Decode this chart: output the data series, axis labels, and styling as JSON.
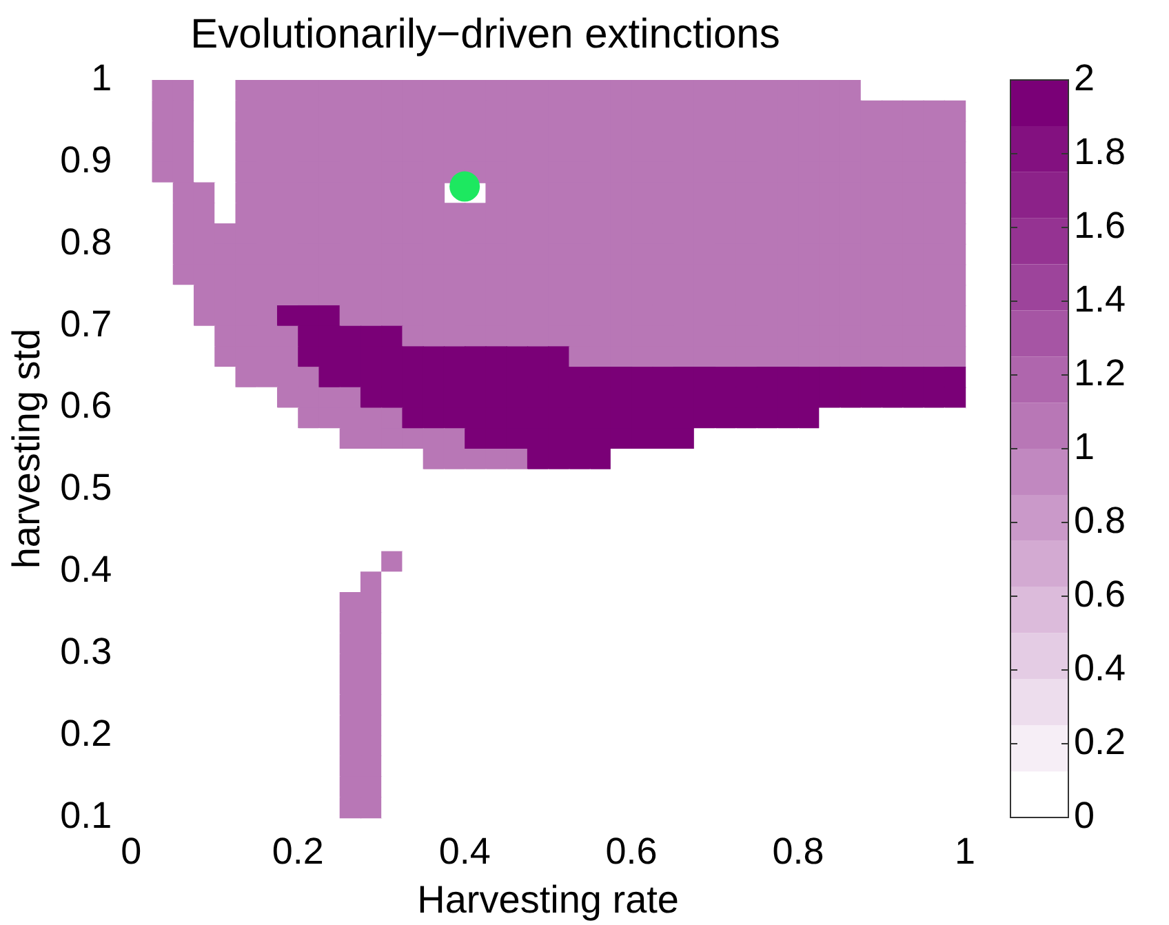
{
  "chart_data": {
    "type": "heatmap",
    "title": "Evolutionarily−driven extinctions",
    "xlabel": "Harvesting rate",
    "ylabel": "harvesting std",
    "x": [
      0.0125,
      0.0375,
      0.0625,
      0.0875,
      0.1125,
      0.1375,
      0.1625,
      0.1875,
      0.2125,
      0.2375,
      0.2625,
      0.2875,
      0.3125,
      0.3375,
      0.3625,
      0.3875,
      0.4125,
      0.4375,
      0.4625,
      0.4875,
      0.5125,
      0.5375,
      0.5625,
      0.5875,
      0.6125,
      0.6375,
      0.6625,
      0.6875,
      0.7125,
      0.7375,
      0.7625,
      0.7875,
      0.8125,
      0.8375,
      0.8625,
      0.8875,
      0.9125,
      0.9375,
      0.9625,
      0.9875
    ],
    "y": [
      0.9875,
      0.9625,
      0.9375,
      0.9125,
      0.8875,
      0.8625,
      0.8375,
      0.8125,
      0.7875,
      0.7625,
      0.7375,
      0.7125,
      0.6875,
      0.6625,
      0.6375,
      0.6125,
      0.5875,
      0.5625,
      0.5375,
      0.5125,
      0.4875,
      0.4625,
      0.4375,
      0.4125,
      0.3875,
      0.3625,
      0.3375,
      0.3125,
      0.2875,
      0.2625,
      0.2375,
      0.2125,
      0.1875,
      0.1625,
      0.1375,
      0.1125
    ],
    "xlim": [
      0,
      1
    ],
    "xticks": [
      0,
      0.2,
      0.4,
      0.6,
      0.8,
      1
    ],
    "ylim": [
      0.1,
      1
    ],
    "yticks": [
      0.1,
      0.2,
      0.3,
      0.4,
      0.5,
      0.6,
      0.7,
      0.8,
      0.9,
      1
    ],
    "clim": [
      0,
      2
    ],
    "cticks": [
      0,
      0.2,
      0.4,
      0.6,
      0.8,
      1,
      1.2,
      1.4,
      1.6,
      1.8,
      2
    ],
    "marker": "circle",
    "series": [
      {
        "type": "scatter",
        "x": [
          0.4
        ],
        "values": [
          0.87
        ],
        "color": "#1de860"
      }
    ],
    "cells": [
      [
        0,
        1,
        1,
        0,
        0,
        1,
        1,
        1,
        1,
        1,
        1,
        1,
        1,
        1,
        1,
        1,
        1,
        1,
        1,
        1,
        1,
        1,
        1,
        1,
        1,
        1,
        1,
        1,
        1,
        1,
        1,
        1,
        1,
        1,
        1,
        0,
        0,
        0,
        0,
        0
      ],
      [
        0,
        1,
        1,
        0,
        0,
        1,
        1,
        1,
        1,
        1,
        1,
        1,
        1,
        1,
        1,
        1,
        1,
        1,
        1,
        1,
        1,
        1,
        1,
        1,
        1,
        1,
        1,
        1,
        1,
        1,
        1,
        1,
        1,
        1,
        1,
        1,
        1,
        1,
        1,
        1
      ],
      [
        0,
        1,
        1,
        0,
        0,
        1,
        1,
        1,
        1,
        1,
        1,
        1,
        1,
        1,
        1,
        1,
        1,
        1,
        1,
        1,
        1,
        1,
        1,
        1,
        1,
        1,
        1,
        1,
        1,
        1,
        1,
        1,
        1,
        1,
        1,
        1,
        1,
        1,
        1,
        1
      ],
      [
        0,
        1,
        1,
        0,
        0,
        1,
        1,
        1,
        1,
        1,
        1,
        1,
        1,
        1,
        1,
        1,
        1,
        1,
        1,
        1,
        1,
        1,
        1,
        1,
        1,
        1,
        1,
        1,
        1,
        1,
        1,
        1,
        1,
        1,
        1,
        1,
        1,
        1,
        1,
        1
      ],
      [
        0,
        1,
        1,
        0,
        0,
        1,
        1,
        1,
        1,
        1,
        1,
        1,
        1,
        1,
        1,
        1,
        1,
        1,
        1,
        1,
        1,
        1,
        1,
        1,
        1,
        1,
        1,
        1,
        1,
        1,
        1,
        1,
        1,
        1,
        1,
        1,
        1,
        1,
        1,
        1
      ],
      [
        0,
        0,
        1,
        1,
        0,
        1,
        1,
        1,
        1,
        1,
        1,
        1,
        1,
        1,
        1,
        null,
        null,
        1,
        1,
        1,
        1,
        1,
        1,
        1,
        1,
        1,
        1,
        1,
        1,
        1,
        1,
        1,
        1,
        1,
        1,
        1,
        1,
        1,
        1,
        1
      ],
      [
        0,
        0,
        1,
        1,
        0,
        1,
        1,
        1,
        1,
        1,
        1,
        1,
        1,
        1,
        1,
        1,
        1,
        1,
        1,
        1,
        1,
        1,
        1,
        1,
        1,
        1,
        1,
        1,
        1,
        1,
        1,
        1,
        1,
        1,
        1,
        1,
        1,
        1,
        1,
        1
      ],
      [
        0,
        0,
        1,
        1,
        1,
        1,
        1,
        1,
        1,
        1,
        1,
        1,
        1,
        1,
        1,
        1,
        1,
        1,
        1,
        1,
        1,
        1,
        1,
        1,
        1,
        1,
        1,
        1,
        1,
        1,
        1,
        1,
        1,
        1,
        1,
        1,
        1,
        1,
        1,
        1
      ],
      [
        0,
        0,
        1,
        1,
        1,
        1,
        1,
        1,
        1,
        1,
        1,
        1,
        1,
        1,
        1,
        1,
        1,
        1,
        1,
        1,
        1,
        1,
        1,
        1,
        1,
        1,
        1,
        1,
        1,
        1,
        1,
        1,
        1,
        1,
        1,
        1,
        1,
        1,
        1,
        1
      ],
      [
        0,
        0,
        1,
        1,
        1,
        1,
        1,
        1,
        1,
        1,
        1,
        1,
        1,
        1,
        1,
        1,
        1,
        1,
        1,
        1,
        1,
        1,
        1,
        1,
        1,
        1,
        1,
        1,
        1,
        1,
        1,
        1,
        1,
        1,
        1,
        1,
        1,
        1,
        1,
        1
      ],
      [
        0,
        0,
        0,
        1,
        1,
        1,
        1,
        1,
        1,
        1,
        1,
        1,
        1,
        1,
        1,
        1,
        1,
        1,
        1,
        1,
        1,
        1,
        1,
        1,
        1,
        1,
        1,
        1,
        1,
        1,
        1,
        1,
        1,
        1,
        1,
        1,
        1,
        1,
        1,
        1
      ],
      [
        0,
        0,
        0,
        1,
        1,
        1,
        1,
        2,
        2,
        2,
        1,
        1,
        1,
        1,
        1,
        1,
        1,
        1,
        1,
        1,
        1,
        1,
        1,
        1,
        1,
        1,
        1,
        1,
        1,
        1,
        1,
        1,
        1,
        1,
        1,
        1,
        1,
        1,
        1,
        1
      ],
      [
        0,
        0,
        0,
        0,
        1,
        1,
        1,
        1,
        2,
        2,
        2,
        2,
        2,
        1,
        1,
        1,
        1,
        1,
        1,
        1,
        1,
        1,
        1,
        1,
        1,
        1,
        1,
        1,
        1,
        1,
        1,
        1,
        1,
        1,
        1,
        1,
        1,
        1,
        1,
        1
      ],
      [
        0,
        0,
        0,
        0,
        1,
        1,
        1,
        1,
        2,
        2,
        2,
        2,
        2,
        2,
        2,
        2,
        2,
        2,
        2,
        2,
        2,
        1,
        1,
        1,
        1,
        1,
        1,
        1,
        1,
        1,
        1,
        1,
        1,
        1,
        1,
        1,
        1,
        1,
        1,
        1
      ],
      [
        0,
        0,
        0,
        0,
        0,
        1,
        1,
        1,
        1,
        2,
        2,
        2,
        2,
        2,
        2,
        2,
        2,
        2,
        2,
        2,
        2,
        2,
        2,
        2,
        2,
        2,
        2,
        2,
        2,
        2,
        2,
        2,
        2,
        2,
        2,
        2,
        2,
        2,
        2,
        2
      ],
      [
        0,
        0,
        0,
        0,
        0,
        0,
        0,
        1,
        1,
        1,
        1,
        2,
        2,
        2,
        2,
        2,
        2,
        2,
        2,
        2,
        2,
        2,
        2,
        2,
        2,
        2,
        2,
        2,
        2,
        2,
        2,
        2,
        2,
        2,
        2,
        2,
        2,
        2,
        2,
        2
      ],
      [
        0,
        0,
        0,
        0,
        0,
        0,
        0,
        0,
        1,
        1,
        1,
        1,
        1,
        2,
        2,
        2,
        2,
        2,
        2,
        2,
        2,
        2,
        2,
        2,
        2,
        2,
        2,
        2,
        2,
        2,
        2,
        2,
        2,
        0,
        0,
        0,
        0,
        0,
        0,
        0
      ],
      [
        0,
        0,
        0,
        0,
        0,
        0,
        0,
        0,
        0,
        0,
        1,
        1,
        1,
        1,
        1,
        1,
        2,
        2,
        2,
        2,
        2,
        2,
        2,
        2,
        2,
        2,
        2,
        0,
        0,
        0,
        0,
        0,
        0,
        0,
        0,
        0,
        0,
        0,
        0,
        0
      ],
      [
        0,
        0,
        0,
        0,
        0,
        0,
        0,
        0,
        0,
        0,
        0,
        0,
        0,
        0,
        1,
        1,
        1,
        1,
        1,
        2,
        2,
        2,
        2,
        0,
        0,
        0,
        0,
        0,
        0,
        0,
        0,
        0,
        0,
        0,
        0,
        0,
        0,
        0,
        0,
        0
      ],
      [
        0,
        0,
        0,
        0,
        0,
        0,
        0,
        0,
        0,
        0,
        0,
        0,
        0,
        0,
        0,
        0,
        0,
        0,
        0,
        0,
        0,
        0,
        0,
        0,
        0,
        0,
        0,
        0,
        0,
        0,
        0,
        0,
        0,
        0,
        0,
        0,
        0,
        0,
        0,
        0
      ],
      [
        0,
        0,
        0,
        0,
        0,
        0,
        0,
        0,
        0,
        0,
        0,
        0,
        0,
        0,
        0,
        0,
        0,
        0,
        0,
        0,
        0,
        0,
        0,
        0,
        0,
        0,
        0,
        0,
        0,
        0,
        0,
        0,
        0,
        0,
        0,
        0,
        0,
        0,
        0,
        0
      ],
      [
        0,
        0,
        0,
        0,
        0,
        0,
        0,
        0,
        0,
        0,
        0,
        0,
        0,
        0,
        0,
        0,
        0,
        0,
        0,
        0,
        0,
        0,
        0,
        0,
        0,
        0,
        0,
        0,
        0,
        0,
        0,
        0,
        0,
        0,
        0,
        0,
        0,
        0,
        0,
        0
      ],
      [
        0,
        0,
        0,
        0,
        0,
        0,
        0,
        0,
        0,
        0,
        0,
        0,
        0,
        0,
        0,
        0,
        0,
        0,
        0,
        0,
        0,
        0,
        0,
        0,
        0,
        0,
        0,
        0,
        0,
        0,
        0,
        0,
        0,
        0,
        0,
        0,
        0,
        0,
        0,
        0
      ],
      [
        0,
        0,
        0,
        0,
        0,
        0,
        0,
        0,
        0,
        0,
        0,
        0,
        1,
        0,
        0,
        0,
        0,
        0,
        0,
        0,
        0,
        0,
        0,
        0,
        0,
        0,
        0,
        0,
        0,
        0,
        0,
        0,
        0,
        0,
        0,
        0,
        0,
        0,
        0,
        0
      ],
      [
        0,
        0,
        0,
        0,
        0,
        0,
        0,
        0,
        0,
        0,
        0,
        1,
        0,
        0,
        0,
        0,
        0,
        0,
        0,
        0,
        0,
        0,
        0,
        0,
        0,
        0,
        0,
        0,
        0,
        0,
        0,
        0,
        0,
        0,
        0,
        0,
        0,
        0,
        0,
        0
      ],
      [
        0,
        0,
        0,
        0,
        0,
        0,
        0,
        0,
        0,
        0,
        1,
        1,
        0,
        0,
        0,
        0,
        0,
        0,
        0,
        0,
        0,
        0,
        0,
        0,
        0,
        0,
        0,
        0,
        0,
        0,
        0,
        0,
        0,
        0,
        0,
        0,
        0,
        0,
        0,
        0
      ],
      [
        0,
        0,
        0,
        0,
        0,
        0,
        0,
        0,
        0,
        0,
        1,
        1,
        0,
        0,
        0,
        0,
        0,
        0,
        0,
        0,
        0,
        0,
        0,
        0,
        0,
        0,
        0,
        0,
        0,
        0,
        0,
        0,
        0,
        0,
        0,
        0,
        0,
        0,
        0,
        0
      ],
      [
        0,
        0,
        0,
        0,
        0,
        0,
        0,
        0,
        0,
        0,
        1,
        1,
        0,
        0,
        0,
        0,
        0,
        0,
        0,
        0,
        0,
        0,
        0,
        0,
        0,
        0,
        0,
        0,
        0,
        0,
        0,
        0,
        0,
        0,
        0,
        0,
        0,
        0,
        0,
        0
      ],
      [
        0,
        0,
        0,
        0,
        0,
        0,
        0,
        0,
        0,
        0,
        1,
        1,
        0,
        0,
        0,
        0,
        0,
        0,
        0,
        0,
        0,
        0,
        0,
        0,
        0,
        0,
        0,
        0,
        0,
        0,
        0,
        0,
        0,
        0,
        0,
        0,
        0,
        0,
        0,
        0
      ],
      [
        0,
        0,
        0,
        0,
        0,
        0,
        0,
        0,
        0,
        0,
        1,
        1,
        0,
        0,
        0,
        0,
        0,
        0,
        0,
        0,
        0,
        0,
        0,
        0,
        0,
        0,
        0,
        0,
        0,
        0,
        0,
        0,
        0,
        0,
        0,
        0,
        0,
        0,
        0,
        0
      ],
      [
        0,
        0,
        0,
        0,
        0,
        0,
        0,
        0,
        0,
        0,
        1,
        1,
        0,
        0,
        0,
        0,
        0,
        0,
        0,
        0,
        0,
        0,
        0,
        0,
        0,
        0,
        0,
        0,
        0,
        0,
        0,
        0,
        0,
        0,
        0,
        0,
        0,
        0,
        0,
        0
      ],
      [
        0,
        0,
        0,
        0,
        0,
        0,
        0,
        0,
        0,
        0,
        1,
        1,
        0,
        0,
        0,
        0,
        0,
        0,
        0,
        0,
        0,
        0,
        0,
        0,
        0,
        0,
        0,
        0,
        0,
        0,
        0,
        0,
        0,
        0,
        0,
        0,
        0,
        0,
        0,
        0
      ],
      [
        0,
        0,
        0,
        0,
        0,
        0,
        0,
        0,
        0,
        0,
        1,
        1,
        0,
        0,
        0,
        0,
        0,
        0,
        0,
        0,
        0,
        0,
        0,
        0,
        0,
        0,
        0,
        0,
        0,
        0,
        0,
        0,
        0,
        0,
        0,
        0,
        0,
        0,
        0,
        0
      ],
      [
        0,
        0,
        0,
        0,
        0,
        0,
        0,
        0,
        0,
        0,
        1,
        1,
        0,
        0,
        0,
        0,
        0,
        0,
        0,
        0,
        0,
        0,
        0,
        0,
        0,
        0,
        0,
        0,
        0,
        0,
        0,
        0,
        0,
        0,
        0,
        0,
        0,
        0,
        0,
        0
      ],
      [
        0,
        0,
        0,
        0,
        0,
        0,
        0,
        0,
        0,
        0,
        1,
        1,
        0,
        0,
        0,
        0,
        0,
        0,
        0,
        0,
        0,
        0,
        0,
        0,
        0,
        0,
        0,
        0,
        0,
        0,
        0,
        0,
        0,
        0,
        0,
        0,
        0,
        0,
        0,
        0
      ],
      [
        0,
        0,
        0,
        0,
        0,
        0,
        0,
        0,
        0,
        0,
        1,
        1,
        0,
        0,
        0,
        0,
        0,
        0,
        0,
        0,
        0,
        0,
        0,
        0,
        0,
        0,
        0,
        0,
        0,
        0,
        0,
        0,
        0,
        0,
        0,
        0,
        0,
        0,
        0,
        0
      ]
    ]
  }
}
